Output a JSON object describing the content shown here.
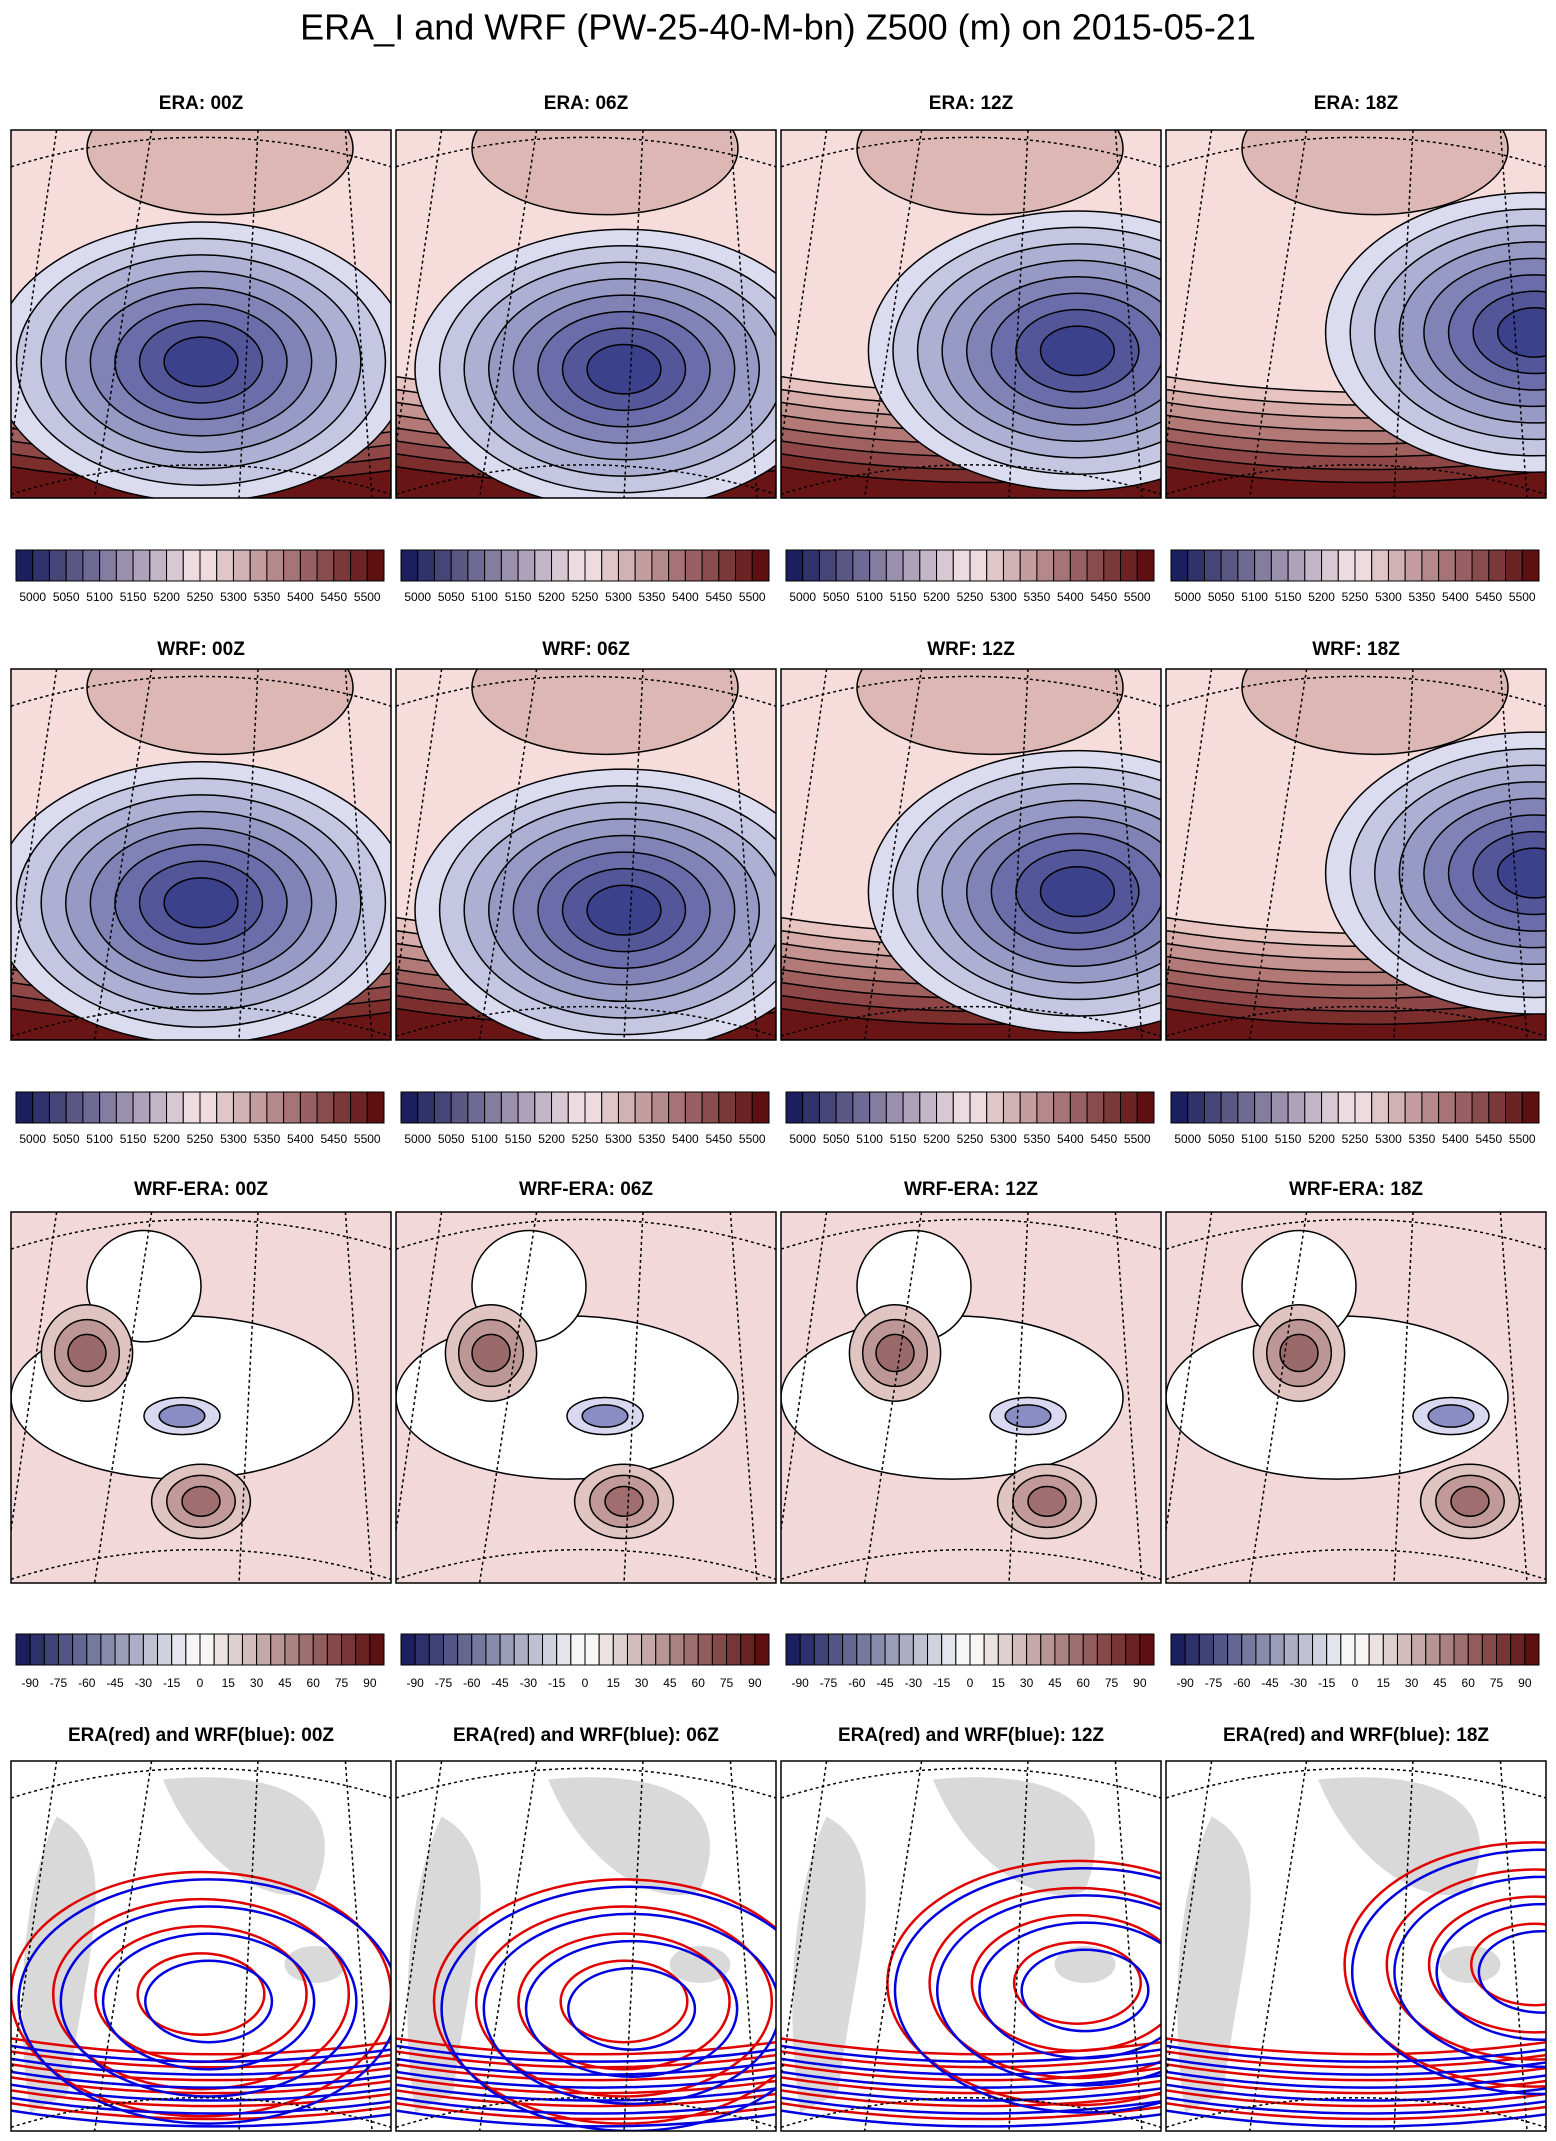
{
  "title": "ERA_I and WRF (PW-25-40-M-bn) Z500 (m) on 2015-05-21",
  "rows": [
    {
      "panels": [
        {
          "title": "ERA: 00Z",
          "colorbar": [
            5000,
            5050,
            5100,
            5150,
            5200,
            5250,
            5300,
            5350,
            5400,
            5450,
            5500
          ]
        },
        {
          "title": "ERA: 06Z",
          "colorbar": [
            5000,
            5050,
            5100,
            5150,
            5200,
            5250,
            5300,
            5350,
            5400,
            5450,
            5500
          ]
        },
        {
          "title": "ERA: 12Z",
          "colorbar": [
            5000,
            5050,
            5100,
            5150,
            5200,
            5250,
            5300,
            5350,
            5400,
            5450,
            5500
          ]
        },
        {
          "title": "ERA: 18Z",
          "colorbar": [
            5000,
            5050,
            5100,
            5150,
            5200,
            5250,
            5300,
            5350,
            5400,
            5450,
            5500
          ]
        }
      ]
    },
    {
      "panels": [
        {
          "title": "WRF: 00Z",
          "colorbar": [
            5000,
            5050,
            5100,
            5150,
            5200,
            5250,
            5300,
            5350,
            5400,
            5450,
            5500
          ]
        },
        {
          "title": "WRF: 06Z",
          "colorbar": [
            5000,
            5050,
            5100,
            5150,
            5200,
            5250,
            5300,
            5350,
            5400,
            5450,
            5500
          ]
        },
        {
          "title": "WRF: 12Z",
          "colorbar": [
            5000,
            5050,
            5100,
            5150,
            5200,
            5250,
            5300,
            5350,
            5400,
            5450,
            5500
          ]
        },
        {
          "title": "WRF: 18Z",
          "colorbar": [
            5000,
            5050,
            5100,
            5150,
            5200,
            5250,
            5300,
            5350,
            5400,
            5450,
            5500
          ]
        }
      ]
    },
    {
      "panels": [
        {
          "title": "WRF-ERA: 00Z",
          "colorbar": [
            -90,
            -75,
            -60,
            -45,
            -30,
            -15,
            0,
            15,
            30,
            45,
            60,
            75,
            90
          ]
        },
        {
          "title": "WRF-ERA: 06Z",
          "colorbar": [
            -90,
            -75,
            -60,
            -45,
            -30,
            -15,
            0,
            15,
            30,
            45,
            60,
            75,
            90
          ]
        },
        {
          "title": "WRF-ERA: 12Z",
          "colorbar": [
            -90,
            -75,
            -60,
            -45,
            -30,
            -15,
            0,
            15,
            30,
            45,
            60,
            75,
            90
          ]
        },
        {
          "title": "WRF-ERA: 18Z",
          "colorbar": [
            -90,
            -75,
            -60,
            -45,
            -30,
            -15,
            0,
            15,
            30,
            45,
            60,
            75,
            90
          ]
        }
      ]
    },
    {
      "panels": [
        {
          "title": "ERA(red) and WRF(blue): 00Z"
        },
        {
          "title": "ERA(red) and WRF(blue): 06Z"
        },
        {
          "title": "ERA(red) and WRF(blue): 12Z"
        },
        {
          "title": "ERA(red) and WRF(blue): 18Z"
        }
      ]
    }
  ]
}
